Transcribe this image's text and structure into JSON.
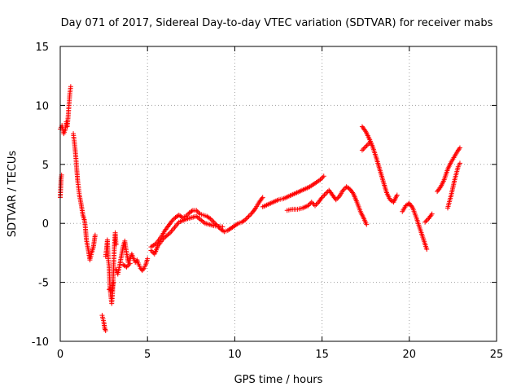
{
  "chart_data": {
    "type": "scatter",
    "title": "Day 071 of 2017, Sidereal Day-to-day VTEC variation (SDTVAR) for receiver mabs",
    "xlabel": "GPS time / hours",
    "ylabel": "SDTVAR / TECUs",
    "xlim": [
      0,
      25
    ],
    "ylim": [
      -10,
      15
    ],
    "xticks": [
      0,
      5,
      10,
      15,
      20,
      25
    ],
    "yticks": [
      -10,
      -5,
      0,
      5,
      10,
      15
    ],
    "xtick_labels": [
      "0",
      "5",
      "10",
      "15",
      "20",
      "25"
    ],
    "ytick_labels": [
      "-10",
      "-5",
      "0",
      "5",
      "10",
      "15"
    ],
    "grid": true,
    "marker": "+",
    "series_color": "#ff0000",
    "series": [
      {
        "name": "SDTVAR",
        "segments": [
          [
            [
              0.0,
              8.0
            ],
            [
              0.1,
              8.3
            ],
            [
              0.2,
              7.6
            ],
            [
              0.3,
              8.0
            ],
            [
              0.35,
              8.6
            ],
            [
              0.4,
              8.2
            ],
            [
              0.45,
              9.0
            ],
            [
              0.5,
              10.0
            ],
            [
              0.55,
              11.0
            ],
            [
              0.6,
              11.6
            ]
          ],
          [
            [
              0.0,
              2.2
            ],
            [
              0.05,
              3.8
            ],
            [
              0.08,
              4.1
            ]
          ],
          [
            [
              0.75,
              7.6
            ],
            [
              0.8,
              7.0
            ],
            [
              0.85,
              6.3
            ],
            [
              0.9,
              5.5
            ],
            [
              0.95,
              4.5
            ],
            [
              1.0,
              3.6
            ],
            [
              1.05,
              3.0
            ],
            [
              1.1,
              2.4
            ],
            [
              1.2,
              1.6
            ],
            [
              1.3,
              0.7
            ],
            [
              1.4,
              0.2
            ],
            [
              1.45,
              -0.5
            ],
            [
              1.5,
              -1.4
            ],
            [
              1.6,
              -2.2
            ],
            [
              1.7,
              -3.1
            ],
            [
              1.8,
              -2.5
            ],
            [
              1.9,
              -2.0
            ],
            [
              1.95,
              -1.5
            ],
            [
              2.0,
              -1.0
            ]
          ],
          [
            [
              2.4,
              -7.8
            ],
            [
              2.5,
              -8.4
            ],
            [
              2.55,
              -8.9
            ],
            [
              2.6,
              -9.1
            ]
          ],
          [
            [
              2.6,
              -2.8
            ],
            [
              2.65,
              -2.2
            ],
            [
              2.7,
              -1.4
            ],
            [
              2.75,
              -3.0
            ],
            [
              2.8,
              -3.6
            ],
            [
              2.85,
              -5.5
            ],
            [
              2.9,
              -6.2
            ],
            [
              2.95,
              -6.8
            ],
            [
              3.0,
              -5.8
            ],
            [
              3.05,
              -4.0
            ],
            [
              3.1,
              -2.0
            ],
            [
              3.15,
              -0.8
            ],
            [
              3.2,
              -1.8
            ]
          ],
          [
            [
              2.8,
              -5.6
            ],
            [
              2.95,
              -5.7
            ],
            [
              3.05,
              -5.0
            ]
          ],
          [
            [
              3.2,
              -3.9
            ],
            [
              3.3,
              -4.3
            ],
            [
              3.4,
              -3.6
            ],
            [
              3.5,
              -2.8
            ],
            [
              3.6,
              -2.0
            ],
            [
              3.7,
              -1.5
            ],
            [
              3.8,
              -2.5
            ],
            [
              3.9,
              -3.3
            ],
            [
              4.0,
              -3.0
            ],
            [
              4.1,
              -2.6
            ],
            [
              4.2,
              -3.0
            ],
            [
              4.3,
              -3.3
            ],
            [
              4.4,
              -3.1
            ],
            [
              4.5,
              -3.5
            ],
            [
              4.6,
              -3.8
            ],
            [
              4.7,
              -4.0
            ],
            [
              4.8,
              -3.8
            ],
            [
              4.9,
              -3.5
            ],
            [
              5.0,
              -3.0
            ]
          ],
          [
            [
              3.6,
              -3.5
            ],
            [
              3.8,
              -3.7
            ],
            [
              4.0,
              -3.4
            ]
          ],
          [
            [
              5.2,
              -2.0
            ],
            [
              5.5,
              -1.7
            ],
            [
              5.8,
              -1.1
            ],
            [
              6.0,
              -0.6
            ],
            [
              6.2,
              -0.2
            ],
            [
              6.4,
              0.2
            ],
            [
              6.6,
              0.5
            ],
            [
              6.8,
              0.7
            ],
            [
              7.0,
              0.5
            ],
            [
              7.2,
              0.6
            ],
            [
              7.4,
              0.9
            ],
            [
              7.6,
              1.1
            ],
            [
              7.8,
              1.1
            ],
            [
              8.0,
              0.8
            ],
            [
              8.2,
              0.7
            ],
            [
              8.4,
              0.6
            ],
            [
              8.6,
              0.4
            ],
            [
              8.8,
              0.1
            ],
            [
              9.0,
              -0.2
            ],
            [
              9.2,
              -0.5
            ],
            [
              9.4,
              -0.7
            ],
            [
              9.6,
              -0.6
            ],
            [
              9.8,
              -0.4
            ],
            [
              10.0,
              -0.2
            ],
            [
              10.2,
              0.0
            ],
            [
              10.4,
              0.1
            ],
            [
              10.6,
              0.3
            ],
            [
              10.8,
              0.6
            ],
            [
              11.0,
              0.9
            ],
            [
              11.2,
              1.3
            ],
            [
              11.4,
              1.8
            ],
            [
              11.6,
              2.2
            ]
          ],
          [
            [
              5.2,
              -2.3
            ],
            [
              5.4,
              -2.6
            ],
            [
              5.6,
              -1.9
            ],
            [
              5.9,
              -1.3
            ],
            [
              6.3,
              -0.8
            ],
            [
              6.8,
              0.1
            ],
            [
              7.3,
              0.4
            ],
            [
              7.8,
              0.6
            ],
            [
              8.3,
              0.0
            ],
            [
              8.8,
              -0.2
            ],
            [
              9.3,
              -0.3
            ]
          ],
          [
            [
              11.6,
              1.4
            ],
            [
              11.9,
              1.6
            ],
            [
              12.2,
              1.8
            ],
            [
              12.5,
              2.0
            ],
            [
              12.8,
              2.1
            ],
            [
              13.1,
              2.3
            ],
            [
              13.4,
              2.5
            ],
            [
              13.7,
              2.7
            ],
            [
              14.0,
              2.9
            ],
            [
              14.3,
              3.1
            ],
            [
              14.6,
              3.4
            ],
            [
              14.9,
              3.7
            ],
            [
              15.1,
              4.0
            ]
          ],
          [
            [
              13.0,
              1.1
            ],
            [
              13.3,
              1.2
            ],
            [
              13.6,
              1.2
            ],
            [
              13.9,
              1.3
            ],
            [
              14.2,
              1.5
            ],
            [
              14.4,
              1.8
            ],
            [
              14.6,
              1.5
            ],
            [
              14.8,
              1.8
            ],
            [
              15.0,
              2.2
            ],
            [
              15.2,
              2.5
            ],
            [
              15.4,
              2.8
            ],
            [
              15.6,
              2.4
            ],
            [
              15.8,
              2.0
            ],
            [
              16.0,
              2.3
            ],
            [
              16.2,
              2.8
            ],
            [
              16.4,
              3.1
            ],
            [
              16.6,
              2.9
            ],
            [
              16.8,
              2.5
            ],
            [
              17.0,
              1.8
            ],
            [
              17.2,
              1.0
            ],
            [
              17.4,
              0.4
            ],
            [
              17.55,
              -0.1
            ]
          ],
          [
            [
              17.3,
              6.2
            ],
            [
              17.5,
              6.5
            ],
            [
              17.7,
              6.8
            ]
          ],
          [
            [
              17.3,
              8.2
            ],
            [
              17.5,
              7.8
            ],
            [
              17.7,
              7.2
            ],
            [
              17.9,
              6.5
            ],
            [
              18.1,
              5.6
            ],
            [
              18.3,
              4.6
            ],
            [
              18.5,
              3.6
            ],
            [
              18.7,
              2.6
            ],
            [
              18.9,
              2.0
            ],
            [
              19.1,
              1.8
            ],
            [
              19.3,
              2.4
            ]
          ],
          [
            [
              19.6,
              1.0
            ],
            [
              19.8,
              1.5
            ],
            [
              20.0,
              1.7
            ],
            [
              20.2,
              1.3
            ],
            [
              20.4,
              0.5
            ],
            [
              20.6,
              -0.4
            ],
            [
              20.8,
              -1.3
            ],
            [
              21.0,
              -2.2
            ]
          ],
          [
            [
              20.9,
              0.1
            ],
            [
              21.1,
              0.4
            ],
            [
              21.3,
              0.8
            ]
          ],
          [
            [
              21.6,
              2.7
            ],
            [
              21.8,
              3.1
            ],
            [
              22.0,
              3.7
            ],
            [
              22.2,
              4.6
            ],
            [
              22.4,
              5.2
            ],
            [
              22.6,
              5.7
            ],
            [
              22.8,
              6.2
            ],
            [
              22.9,
              6.4
            ]
          ],
          [
            [
              22.2,
              1.3
            ],
            [
              22.4,
              2.4
            ],
            [
              22.6,
              3.7
            ],
            [
              22.8,
              4.8
            ],
            [
              22.9,
              5.1
            ]
          ]
        ]
      }
    ]
  }
}
